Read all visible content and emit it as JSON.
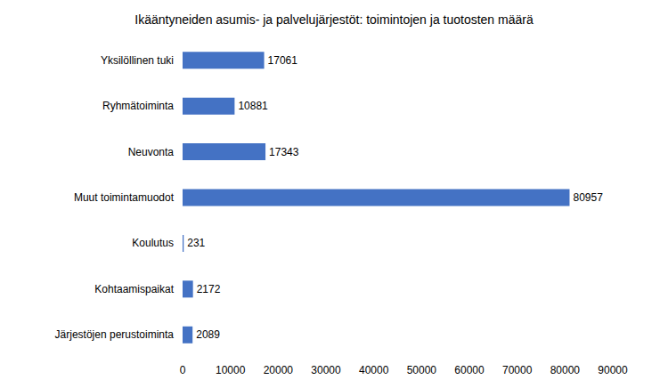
{
  "chart_data": {
    "type": "bar",
    "title": "Ikääntyneiden asumis- ja palvelujärjestöt: toimintojen ja tuotosten määrä",
    "orientation": "horizontal",
    "categories": [
      "Yksilöllinen tuki",
      "Ryhmätoiminta",
      "Neuvonta",
      "Muut toimintamuodot",
      "Koulutus",
      "Kohtaamispaikat",
      "Järjestöjen perustoiminta"
    ],
    "values": [
      17061,
      10881,
      17343,
      80957,
      231,
      2172,
      2089
    ],
    "color": "#4472c4",
    "xlim": [
      0,
      90000
    ],
    "xticks": [
      0,
      10000,
      20000,
      30000,
      40000,
      50000,
      60000,
      70000,
      80000,
      90000
    ],
    "grid": false,
    "data_labels": true
  }
}
